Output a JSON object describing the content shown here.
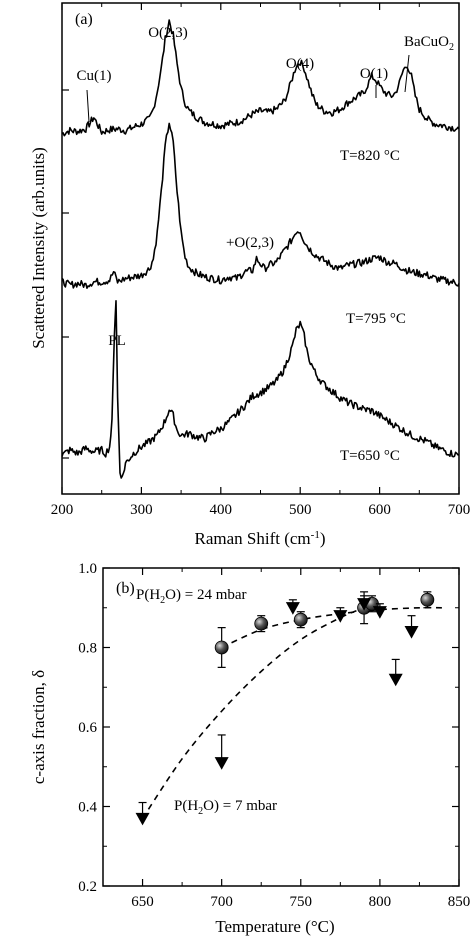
{
  "chart_data": [
    {
      "type": "line",
      "panel_label": "(a)",
      "xlabel_main": "Raman Shift (cm",
      "xlabel_sup": "-1",
      "xlabel_end": ")",
      "ylabel": "Scattered Intensity (arb.units)",
      "xlim": [
        200,
        700
      ],
      "x_ticks": [
        "200",
        "300",
        "400",
        "500",
        "600",
        "700"
      ],
      "series": [
        {
          "label": "T=820 °C",
          "baseline": 0,
          "x": [
            200,
            210,
            220,
            230,
            240,
            250,
            260,
            270,
            280,
            290,
            300,
            310,
            315,
            320,
            325,
            330,
            335,
            340,
            345,
            350,
            355,
            360,
            370,
            380,
            390,
            400,
            410,
            420,
            430,
            440,
            450,
            460,
            470,
            480,
            485,
            490,
            495,
            500,
            505,
            510,
            515,
            520,
            530,
            540,
            550,
            560,
            570,
            580,
            585,
            590,
            595,
            600,
            605,
            610,
            615,
            620,
            625,
            630,
            635,
            640,
            645,
            650,
            660,
            670,
            680,
            690,
            700
          ],
          "y": [
            0.1,
            0.14,
            0.13,
            0.16,
            0.3,
            0.12,
            0.15,
            0.16,
            0.14,
            0.18,
            0.22,
            0.28,
            0.4,
            0.62,
            0.9,
            1.25,
            1.48,
            1.3,
            0.95,
            0.65,
            0.48,
            0.38,
            0.3,
            0.24,
            0.22,
            0.2,
            0.22,
            0.24,
            0.28,
            0.34,
            0.38,
            0.36,
            0.4,
            0.5,
            0.62,
            0.78,
            0.93,
            0.98,
            0.9,
            0.74,
            0.58,
            0.46,
            0.38,
            0.36,
            0.4,
            0.48,
            0.54,
            0.6,
            0.7,
            0.8,
            0.76,
            0.68,
            0.62,
            0.58,
            0.56,
            0.6,
            0.72,
            0.88,
            0.94,
            0.8,
            0.56,
            0.4,
            0.28,
            0.22,
            0.2,
            0.18,
            0.16
          ]
        },
        {
          "label": "T=795 °C",
          "baseline": 1,
          "x": [
            200,
            210,
            220,
            230,
            240,
            250,
            260,
            265,
            270,
            275,
            280,
            290,
            300,
            310,
            315,
            320,
            325,
            330,
            335,
            340,
            345,
            350,
            355,
            360,
            370,
            380,
            390,
            400,
            410,
            420,
            430,
            440,
            445,
            450,
            455,
            460,
            470,
            480,
            490,
            495,
            500,
            505,
            510,
            520,
            530,
            540,
            550,
            560,
            570,
            580,
            590,
            600,
            610,
            620,
            630,
            640,
            650,
            660,
            670,
            680,
            690,
            700
          ],
          "y": [
            0.1,
            0.06,
            0.08,
            0.06,
            0.1,
            0.1,
            0.12,
            0.22,
            0.1,
            0.12,
            0.14,
            0.16,
            0.18,
            0.26,
            0.38,
            0.7,
            1.2,
            1.75,
            2.05,
            1.8,
            1.2,
            0.7,
            0.4,
            0.28,
            0.2,
            0.16,
            0.14,
            0.12,
            0.16,
            0.14,
            0.22,
            0.24,
            0.38,
            0.32,
            0.26,
            0.3,
            0.34,
            0.48,
            0.62,
            0.72,
            0.72,
            0.6,
            0.52,
            0.42,
            0.36,
            0.3,
            0.26,
            0.3,
            0.32,
            0.34,
            0.38,
            0.4,
            0.34,
            0.32,
            0.26,
            0.22,
            0.2,
            0.18,
            0.14,
            0.12,
            0.1,
            0.08
          ]
        },
        {
          "label": "T=650 °C",
          "baseline": 2,
          "x": [
            200,
            210,
            220,
            230,
            240,
            250,
            255,
            260,
            263,
            266,
            268,
            270,
            273,
            276,
            280,
            290,
            300,
            310,
            320,
            330,
            335,
            340,
            345,
            350,
            360,
            370,
            380,
            390,
            400,
            410,
            420,
            430,
            440,
            450,
            460,
            470,
            480,
            490,
            495,
            500,
            505,
            510,
            520,
            530,
            540,
            550,
            560,
            570,
            580,
            590,
            600,
            610,
            620,
            630,
            640,
            650,
            660,
            670,
            680,
            690,
            700
          ],
          "y": [
            0.0,
            0.06,
            0.02,
            0.08,
            0.04,
            0.06,
            0.02,
            0.1,
            0.4,
            1.5,
            1.9,
            0.7,
            -0.2,
            -0.28,
            -0.1,
            0.02,
            0.1,
            0.16,
            0.24,
            0.42,
            0.56,
            0.48,
            0.3,
            0.24,
            0.26,
            0.22,
            0.2,
            0.28,
            0.32,
            0.4,
            0.5,
            0.6,
            0.72,
            0.76,
            0.82,
            0.9,
            1.05,
            1.32,
            1.52,
            1.6,
            1.45,
            1.2,
            0.98,
            0.86,
            0.78,
            0.7,
            0.64,
            0.6,
            0.56,
            0.54,
            0.48,
            0.42,
            0.36,
            0.3,
            0.24,
            0.2,
            0.16,
            0.1,
            0.06,
            0.02,
            0.0
          ]
        }
      ],
      "annotations": {
        "cu1": "Cu(1)",
        "o23": "O(2,3)",
        "o4": "O(4)",
        "o1": "O(1)",
        "bacuo2_main": "BaCuO",
        "bacuo2_sub": "2",
        "plus_o23": "+O(2,3)",
        "pl": "PL"
      }
    },
    {
      "type": "scatter",
      "panel_label": "(b)",
      "xlabel": "Temperature (°C)",
      "ylabel": "c-axis fraction, δ",
      "xlim": [
        625,
        850
      ],
      "ylim": [
        0.2,
        1.0
      ],
      "x_ticks": [
        650,
        700,
        750,
        800,
        850
      ],
      "y_ticks": [
        0.2,
        0.4,
        0.6,
        0.8,
        1.0
      ],
      "y_tick_labels": [
        "0.2",
        "0.4",
        "0.6",
        "0.8",
        "1.0"
      ],
      "series": [
        {
          "name_main": "P(H",
          "name_sub": "2",
          "name_end": "O) = 24 mbar",
          "marker": "circle",
          "x": [
            700,
            725,
            750,
            790,
            795,
            830
          ],
          "y": [
            0.8,
            0.86,
            0.87,
            0.9,
            0.91,
            0.92
          ],
          "err": [
            0.05,
            0.02,
            0.02,
            0.04,
            0.02,
            0.02
          ],
          "fit_x": [
            700,
            725,
            750,
            775,
            800,
            825,
            840
          ],
          "fit_y": [
            0.8,
            0.845,
            0.87,
            0.885,
            0.895,
            0.9,
            0.9
          ]
        },
        {
          "name_main": "P(H",
          "name_sub": "2",
          "name_end": "O) = 7 mbar",
          "marker": "triangle-down",
          "x": [
            650,
            700,
            745,
            775,
            790,
            800,
            810,
            820
          ],
          "y": [
            0.37,
            0.51,
            0.9,
            0.88,
            0.91,
            0.89,
            0.72,
            0.84
          ],
          "err": [
            0.04,
            0.07,
            0.02,
            0.02,
            0.02,
            0.02,
            0.05,
            0.04
          ],
          "fit_x": [
            650,
            675,
            700,
            725,
            750,
            775,
            790
          ],
          "fit_y": [
            0.37,
            0.52,
            0.64,
            0.74,
            0.82,
            0.875,
            0.9
          ]
        }
      ]
    }
  ]
}
